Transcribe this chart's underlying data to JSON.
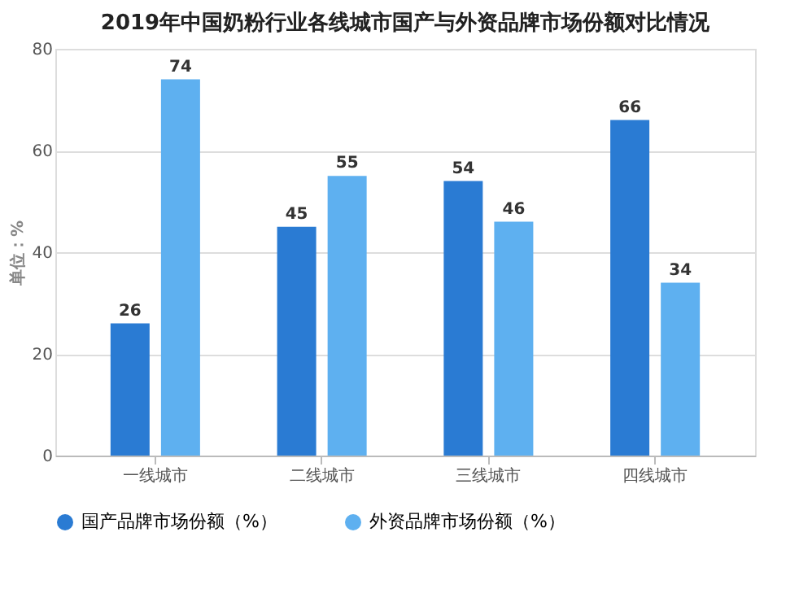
{
  "chart_data": {
    "type": "bar",
    "title": "2019年中国奶粉行业各线城市国产与外资品牌市场份额对比情况",
    "ylabel": "单位：%",
    "categories": [
      "一线城市",
      "二线城市",
      "三线城市",
      "四线城市"
    ],
    "series": [
      {
        "name": "国产品牌市场份额（%）",
        "color": "#2a7bd3",
        "values": [
          26,
          45,
          54,
          66
        ]
      },
      {
        "name": "外资品牌市场份额（%）",
        "color": "#5eb0f0",
        "values": [
          74,
          55,
          46,
          34
        ]
      }
    ],
    "ylim": [
      0,
      80
    ],
    "yticks": [
      0,
      20,
      40,
      60,
      80
    ],
    "grid": "y",
    "legend": "bottom",
    "data_labels": true
  }
}
